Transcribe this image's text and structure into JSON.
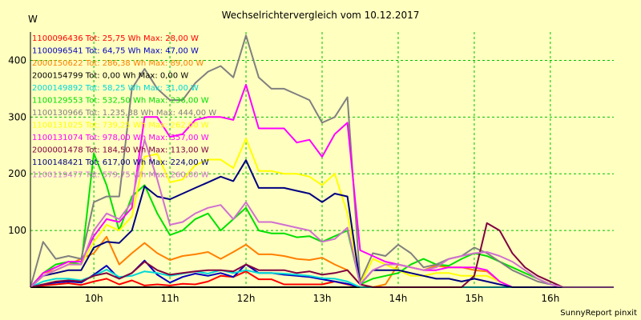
{
  "chart_data": {
    "type": "line",
    "title": "Wechselrichtervergleich vom 10.12.2017",
    "ylabel": "W",
    "footer": "SunnyReport pinxit",
    "ylim": [
      0,
      450
    ],
    "xlim": [
      9.1667,
      16.8333
    ],
    "grid": true,
    "legend_placement": "top-left",
    "y_ticks": [
      100,
      200,
      300,
      400
    ],
    "x_ticks": [
      {
        "value": 10,
        "label": "10h"
      },
      {
        "value": 11,
        "label": "11h"
      },
      {
        "value": 12,
        "label": "12h"
      },
      {
        "value": 13,
        "label": "13h"
      },
      {
        "value": 14,
        "label": "14h"
      },
      {
        "value": 15,
        "label": "15h"
      },
      {
        "value": 16,
        "label": "16h"
      }
    ],
    "x": [
      9.1667,
      9.3333,
      9.5,
      9.6667,
      9.8333,
      10.0,
      10.1667,
      10.3333,
      10.5,
      10.6667,
      10.8333,
      11.0,
      11.1667,
      11.3333,
      11.5,
      11.6667,
      11.8333,
      12.0,
      12.1667,
      12.3333,
      12.5,
      12.6667,
      12.8333,
      13.0,
      13.1667,
      13.3333,
      13.5,
      13.6667,
      13.8333,
      14.0,
      14.1667,
      14.3333,
      14.5,
      14.6667,
      14.8333,
      15.0,
      15.1667,
      15.3333,
      15.5,
      15.6667,
      15.8333,
      16.0,
      16.1667,
      16.3333,
      16.5,
      16.6667,
      16.8333
    ],
    "series": [
      {
        "label": "1100096436 Tot: 25,75 Wh Max: 28,00 W",
        "color": "#ff0000",
        "values": [
          0,
          3,
          5,
          7,
          4,
          10,
          15,
          5,
          12,
          3,
          5,
          3,
          6,
          5,
          10,
          20,
          18,
          28,
          14,
          14,
          5,
          5,
          5,
          5,
          10,
          5,
          0,
          0,
          0,
          0,
          0,
          0,
          0,
          0,
          0,
          0,
          0,
          0,
          0,
          0,
          0,
          0,
          0,
          0,
          0,
          0,
          0
        ]
      },
      {
        "label": "1100096541 Tot: 64,75 Wh Max: 47,00 W",
        "color": "#0000c0",
        "values": [
          0,
          5,
          8,
          10,
          8,
          22,
          38,
          15,
          25,
          47,
          22,
          8,
          18,
          24,
          20,
          25,
          18,
          40,
          25,
          25,
          22,
          20,
          18,
          14,
          10,
          6,
          0,
          0,
          0,
          0,
          0,
          0,
          0,
          0,
          0,
          0,
          0,
          0,
          0,
          0,
          0,
          0,
          0,
          0,
          0,
          0,
          0
        ]
      },
      {
        "label": "2000150622 Tot: 286,38 Wh Max: 89,00 W",
        "color": "#ff8000",
        "values": [
          0,
          25,
          30,
          40,
          50,
          60,
          89,
          40,
          60,
          78,
          60,
          48,
          55,
          58,
          62,
          50,
          62,
          75,
          58,
          58,
          55,
          50,
          48,
          52,
          40,
          30,
          5,
          0,
          5,
          40,
          35,
          30,
          38,
          35,
          35,
          30,
          28,
          10,
          0,
          0,
          0,
          0,
          0,
          0,
          0,
          0,
          0
        ]
      },
      {
        "label": "2000154799 Tot: 0,00 Wh Max: 0,00 W",
        "color": "#000000",
        "values": [
          0,
          0,
          0,
          0,
          0,
          0,
          0,
          0,
          0,
          0,
          0,
          0,
          0,
          0,
          0,
          0,
          0,
          0,
          0,
          0,
          0,
          0,
          0,
          0,
          0,
          0,
          0,
          0,
          0,
          0,
          0,
          0,
          0,
          0,
          0,
          0,
          0,
          0,
          0,
          0,
          0,
          0,
          0,
          0,
          0,
          0,
          0
        ]
      },
      {
        "label": "2000149892 Tot: 58,25 Wh Max: 31,00 W",
        "color": "#00d8d8",
        "values": [
          0,
          10,
          15,
          15,
          12,
          20,
          31,
          18,
          20,
          28,
          25,
          20,
          24,
          28,
          24,
          30,
          25,
          30,
          25,
          25,
          24,
          22,
          20,
          16,
          15,
          10,
          0,
          0,
          0,
          0,
          0,
          0,
          0,
          0,
          0,
          0,
          0,
          0,
          0,
          0,
          0,
          0,
          0,
          0,
          0,
          0,
          0
        ]
      },
      {
        "label": "1100129553 Tot: 532,50 Wh Max: 236,00 W",
        "color": "#00e000",
        "values": [
          0,
          25,
          40,
          45,
          40,
          236,
          180,
          100,
          160,
          180,
          130,
          92,
          100,
          120,
          130,
          100,
          120,
          140,
          100,
          95,
          95,
          88,
          90,
          80,
          90,
          100,
          5,
          15,
          20,
          25,
          40,
          50,
          40,
          38,
          50,
          60,
          55,
          45,
          35,
          25,
          15,
          5,
          0,
          0,
          0,
          0,
          0
        ]
      },
      {
        "label": "1100130966 Tot: 1.235,38 Wh Max: 444,00 W",
        "color": "#808080",
        "values": [
          0,
          80,
          50,
          55,
          50,
          150,
          160,
          160,
          350,
          385,
          350,
          330,
          330,
          360,
          380,
          390,
          370,
          444,
          370,
          350,
          350,
          340,
          330,
          290,
          300,
          335,
          10,
          60,
          55,
          75,
          60,
          35,
          40,
          50,
          55,
          70,
          60,
          45,
          30,
          20,
          10,
          5,
          0,
          0,
          0,
          0,
          0
        ]
      },
      {
        "label": "1100131025 Tot: 739,25 Wh Max: 262,00 W",
        "color": "#ffff00",
        "values": [
          0,
          20,
          30,
          40,
          40,
          80,
          110,
          100,
          125,
          230,
          235,
          185,
          190,
          215,
          225,
          225,
          210,
          262,
          205,
          205,
          200,
          200,
          195,
          180,
          200,
          130,
          5,
          50,
          40,
          30,
          20,
          20,
          25,
          25,
          20,
          20,
          20,
          10,
          0,
          0,
          0,
          0,
          0,
          0,
          0,
          0,
          0
        ]
      },
      {
        "label": "1100131074 Tot: 978,00 Wh Max: 357,00 W",
        "color": "#ff00ff",
        "values": [
          0,
          25,
          35,
          45,
          45,
          90,
          120,
          115,
          140,
          300,
          300,
          265,
          270,
          295,
          300,
          300,
          295,
          357,
          280,
          280,
          280,
          255,
          260,
          230,
          270,
          290,
          65,
          55,
          45,
          40,
          35,
          30,
          30,
          35,
          35,
          35,
          30,
          10,
          0,
          0,
          0,
          0,
          0,
          0,
          0,
          0,
          0
        ]
      },
      {
        "label": "2000001478 Tot: 184,50 Wh Max: 113,00 W",
        "color": "#800040",
        "values": [
          0,
          5,
          10,
          12,
          10,
          20,
          25,
          15,
          25,
          45,
          30,
          22,
          25,
          28,
          30,
          30,
          28,
          40,
          30,
          30,
          30,
          25,
          28,
          22,
          25,
          30,
          5,
          0,
          0,
          0,
          0,
          0,
          0,
          0,
          0,
          20,
          113,
          100,
          60,
          35,
          20,
          10,
          0,
          0,
          0,
          0,
          0
        ]
      },
      {
        "label": "1100148421 Tot: 617,00 Wh Max: 224,00 W",
        "color": "#000080",
        "values": [
          0,
          20,
          25,
          30,
          30,
          70,
          80,
          78,
          100,
          178,
          160,
          155,
          165,
          175,
          185,
          195,
          187,
          224,
          175,
          175,
          175,
          170,
          165,
          150,
          165,
          160,
          5,
          30,
          30,
          30,
          25,
          20,
          15,
          15,
          10,
          15,
          10,
          5,
          0,
          0,
          0,
          0,
          0,
          0,
          0,
          0,
          0
        ]
      },
      {
        "label": "1100119477 Tot: 579,75 Wh Max: 260,00 W",
        "color": "#d070d0",
        "values": [
          0,
          20,
          30,
          40,
          40,
          100,
          130,
          120,
          150,
          260,
          190,
          110,
          115,
          130,
          140,
          145,
          120,
          150,
          115,
          115,
          110,
          105,
          100,
          80,
          85,
          105,
          5,
          30,
          40,
          40,
          35,
          30,
          35,
          50,
          55,
          60,
          62,
          55,
          45,
          30,
          15,
          5,
          0,
          0,
          0,
          0,
          0
        ]
      }
    ]
  }
}
